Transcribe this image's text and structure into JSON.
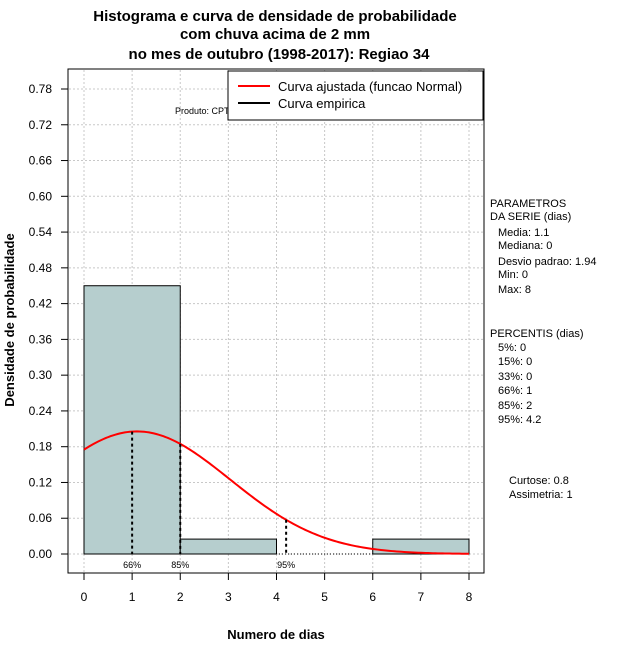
{
  "chart_data": {
    "type": "bar",
    "title_lines": [
      "Histograma e curva de densidade de probabilidade",
      "com chuva acima de 2 mm",
      "no mes de outubro (1998-2017): Regiao 34"
    ],
    "xlabel": "Numero de dias",
    "ylabel": "Densidade de probabilidade",
    "xlim": [
      0,
      8
    ],
    "ylim": [
      0,
      0.8
    ],
    "x_ticks": [
      "0",
      "1",
      "2",
      "3",
      "4",
      "5",
      "6",
      "7",
      "8"
    ],
    "y_ticks": [
      "0.00",
      "0.06",
      "0.12",
      "0.18",
      "0.24",
      "0.30",
      "0.36",
      "0.42",
      "0.48",
      "0.54",
      "0.60",
      "0.66",
      "0.72",
      "0.78"
    ],
    "bars": [
      {
        "x0": 0,
        "x1": 2,
        "value": 0.45
      },
      {
        "x0": 2,
        "x1": 4,
        "value": 0.025
      },
      {
        "x0": 4,
        "x1": 6,
        "value": 0.0
      },
      {
        "x0": 6,
        "x1": 8,
        "value": 0.025
      }
    ],
    "bar_color": "#b6cece",
    "curve_color": "#ff0000",
    "fitted_curve": {
      "name": "Curva ajustada (funcao Normal)",
      "mean": 1.1,
      "sd": 1.94,
      "x_from": 0,
      "x_to": 8
    },
    "empirical_label": "Curva empirica",
    "percentile_markers": [
      {
        "x": 1,
        "label": "66%"
      },
      {
        "x": 2,
        "label": "85%"
      },
      {
        "x": 4.2,
        "label": "95%"
      }
    ],
    "product_label": "Produto: CPTEC/INPE",
    "grid": true,
    "legend_position": "top-right"
  },
  "side_panel": {
    "params_title": [
      "PARAMETROS",
      "DA SERIE (dias)"
    ],
    "params": [
      "Media: 1.1",
      "Mediana: 0",
      "Desvio padrao: 1.94",
      "Min: 0",
      "Max: 8"
    ],
    "percentis_title": "PERCENTIS (dias)",
    "percentis": [
      "5%: 0",
      "15%: 0",
      "33%: 0",
      "66%: 1",
      "85%: 2",
      "95%: 4.2"
    ],
    "curtose": "Curtose: 0.8",
    "assimetria": "Assimetria: 1"
  }
}
